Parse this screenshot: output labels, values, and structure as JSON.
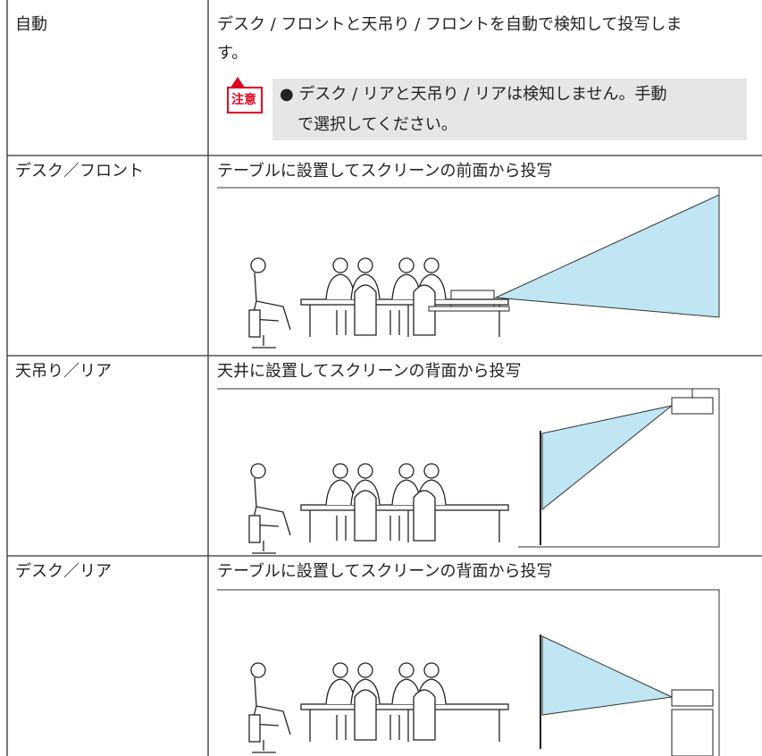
{
  "table": {
    "rows": [
      [
        "自動",
        "デスク / フロントと天吊り / フロントを自動で検知して投写しま",
        "す。"
      ],
      [
        "デスク／フロント",
        "テーブルに設置してスクリーンの前面から投写"
      ],
      [
        "天吊り／リア",
        "天井に設置してスクリーンの背面から投写"
      ],
      [
        "デスク／リア",
        "テーブルに設置してスクリーンの背面から投写"
      ]
    ]
  },
  "note": {
    "label": "注意",
    "lines": [
      "● デスク / リアと天吊り / リアは検知しません。手動",
      "で選択してください。"
    ]
  }
}
